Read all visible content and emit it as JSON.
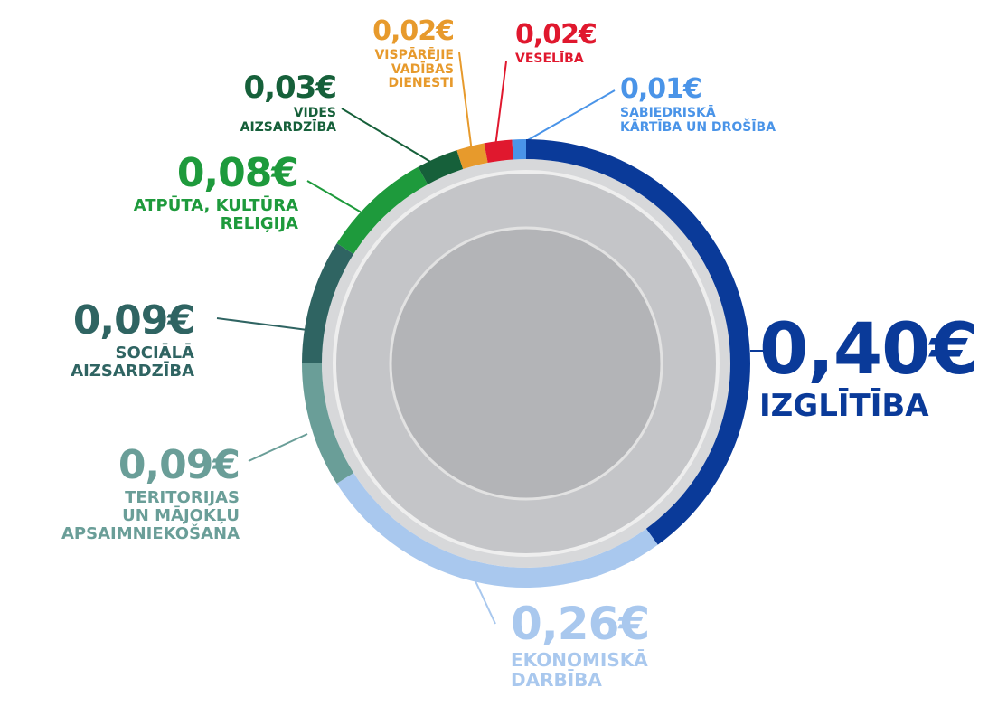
{
  "chart_data": {
    "type": "donut",
    "categories": [
      "IZGLĪTĪBA",
      "EKONOMISKĀ\nDARBĪBA",
      "TERITORIJAS\nUN MĀJOKĻU\nAPSAIMNIEKOŠANA",
      "SOCIĀLĀ\nAIZSARDZĪBA",
      "ATPŪTA, KULTŪRA\nRELIĢIJA",
      "VIDES\nAIZSARDZĪBA",
      "VISPĀRĒJIE\nVADĪBAS\nDIENESTI",
      "VESELĪBA",
      "SABIEDRISKĀ\nKĀRTĪBA UN DROŠĪBA"
    ],
    "values": [
      0.4,
      0.26,
      0.09,
      0.09,
      0.08,
      0.03,
      0.02,
      0.02,
      0.01
    ],
    "value_labels": [
      "0,40€",
      "0,26€",
      "0,09€",
      "0,09€",
      "0,08€",
      "0,03€",
      "0,02€",
      "0,02€",
      "0,01€"
    ],
    "colors": [
      "#0a3a99",
      "#a9c8ee",
      "#6a9e98",
      "#2f6462",
      "#1e9a3c",
      "#16603a",
      "#e79a2c",
      "#e0182e",
      "#4a94e8"
    ]
  }
}
